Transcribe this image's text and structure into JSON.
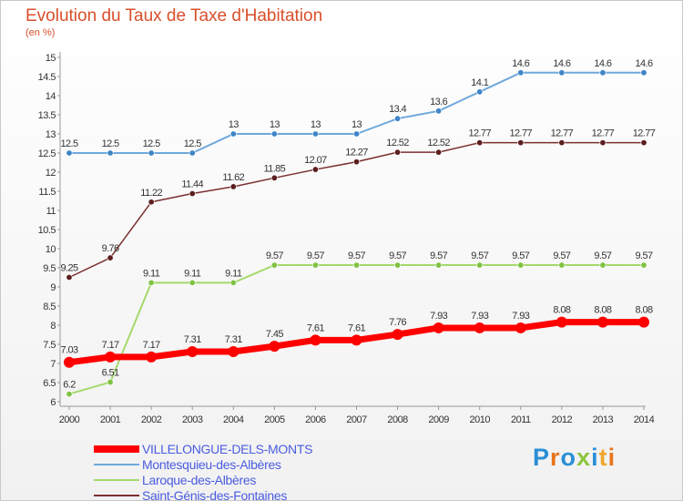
{
  "header": {
    "title": "Evolution du Taux de Taxe d'Habitation",
    "subtitle": "(en %)"
  },
  "chart_data": {
    "type": "line",
    "title": "Evolution du Taux de Taxe d'Habitation",
    "ylabel": "(en %)",
    "xlabel": "",
    "x": [
      "2000",
      "2001",
      "2002",
      "2003",
      "2004",
      "2005",
      "2006",
      "2007",
      "2008",
      "2009",
      "2010",
      "2011",
      "2012",
      "2013",
      "2014"
    ],
    "ylim": [
      6,
      15
    ],
    "yticks": [
      6,
      6.5,
      7,
      7.5,
      8,
      8.5,
      9,
      9.5,
      10,
      10.5,
      11,
      11.5,
      12,
      12.5,
      13,
      13.5,
      14,
      14.5,
      15
    ],
    "ytick_labels": [
      "6",
      "6.5",
      "7",
      "7.5",
      "8",
      "8.5",
      "9",
      "9.5",
      "10",
      "10.5",
      "11",
      "11.5",
      "12",
      "12.5",
      "13",
      "13.5",
      "14",
      "14.5",
      "15"
    ],
    "grid": false,
    "legend_position": "bottom-left",
    "series": [
      {
        "name": "Montesquieu-des-Albères",
        "color": "#6fa8dc",
        "marker_color": "#3d85c6",
        "line_width": 2,
        "values": [
          12.5,
          12.5,
          12.5,
          12.5,
          13,
          13,
          13,
          13,
          13.4,
          13.6,
          14.1,
          14.6,
          14.6,
          14.6,
          14.6
        ],
        "labels": [
          "12.5",
          "12.5",
          "12.5",
          "12.5",
          "13",
          "13",
          "13",
          "13",
          "13.4",
          "13.6",
          "14.1",
          "14.6",
          "14.6",
          "14.6",
          "14.6"
        ]
      },
      {
        "name": "Saint-Génis-des-Fontaines",
        "color": "#7a2f2f",
        "marker_color": "#5c1e1e",
        "line_width": 1.5,
        "values": [
          9.25,
          9.76,
          11.22,
          11.44,
          11.62,
          11.85,
          12.07,
          12.27,
          12.52,
          12.52,
          12.77,
          12.77,
          12.77,
          12.77,
          12.77
        ],
        "labels": [
          "9.25",
          "9.76",
          "11.22",
          "11.44",
          "11.62",
          "11.85",
          "12.07",
          "12.27",
          "12.52",
          "12.52",
          "12.77",
          "12.77",
          "12.77",
          "12.77",
          "12.77"
        ]
      },
      {
        "name": "Laroque-des-Albères",
        "color": "#a4d96c",
        "marker_color": "#7fc241",
        "line_width": 2,
        "values": [
          6.2,
          6.51,
          9.11,
          9.11,
          9.11,
          9.57,
          9.57,
          9.57,
          9.57,
          9.57,
          9.57,
          9.57,
          9.57,
          9.57,
          9.57
        ],
        "labels": [
          "6.2",
          "6.51",
          "9.11",
          "9.11",
          "9.11",
          "9.57",
          "9.57",
          "9.57",
          "9.57",
          "9.57",
          "9.57",
          "9.57",
          "9.57",
          "9.57",
          "9.57"
        ]
      },
      {
        "name": "VILLELONGUE-DELS-MONTS",
        "color": "#ff0000",
        "marker_color": "#ff0000",
        "line_width": 7,
        "values": [
          7.03,
          7.17,
          7.17,
          7.31,
          7.31,
          7.45,
          7.61,
          7.61,
          7.76,
          7.93,
          7.93,
          7.93,
          8.08,
          8.08,
          8.08
        ],
        "labels": [
          "7.03",
          "7.17",
          "7.17",
          "7.31",
          "7.31",
          "7.45",
          "7.61",
          "7.61",
          "7.76",
          "7.93",
          "7.93",
          "7.93",
          "8.08",
          "8.08",
          "8.08"
        ]
      }
    ],
    "legend": [
      {
        "name": "VILLELONGUE-DELS-MONTS",
        "color": "#ff0000",
        "line_width": 8
      },
      {
        "name": "Montesquieu-des-Albères",
        "color": "#6fa8dc",
        "line_width": 2
      },
      {
        "name": "Laroque-des-Albères",
        "color": "#a4d96c",
        "line_width": 2
      },
      {
        "name": "Saint-Génis-des-Fontaines",
        "color": "#7a2f2f",
        "line_width": 2
      }
    ]
  },
  "logo": {
    "text": "Proxiti",
    "letter_colors": [
      "#2a8fd6",
      "#e8761c",
      "#2a8fd6",
      "#8cc63f",
      "#2a8fd6",
      "#f0a72e",
      "#e8761c"
    ]
  }
}
